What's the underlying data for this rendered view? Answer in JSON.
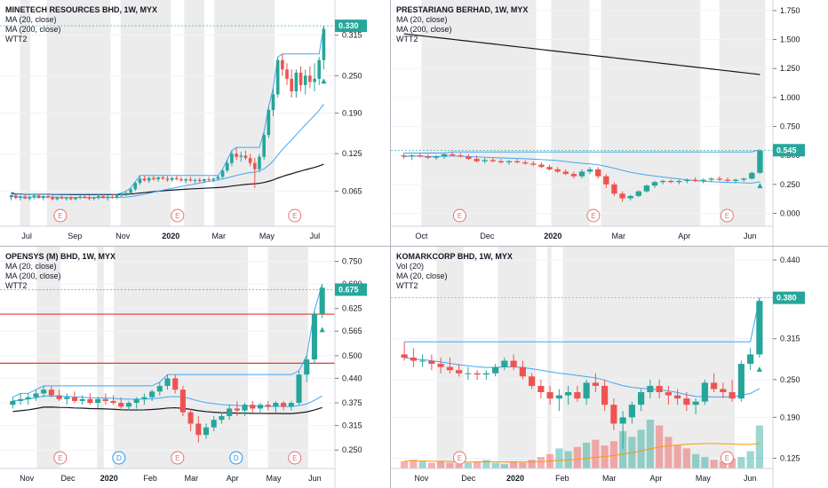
{
  "chart_data": [
    {
      "type": "candlestick",
      "title": "MINETECH RESOURCES BHD, 1W, MYX",
      "indicators": [
        "MA (20, close)",
        "MA (200, close)",
        "WTT2"
      ],
      "x_ticks": [
        "Jul",
        "Sep",
        "Nov",
        "2020",
        "Mar",
        "May",
        "Jul"
      ],
      "y_ticks": [
        "0.315",
        "0.250",
        "0.190",
        "0.125",
        "0.065"
      ],
      "ylim": [
        0.02,
        0.36
      ],
      "last_price": "0.330",
      "accent": "#26a69a",
      "events": [
        "E",
        "E",
        "E"
      ],
      "ohlc": [
        [
          0.055,
          0.06,
          0.05,
          0.058
        ],
        [
          0.058,
          0.06,
          0.052,
          0.054
        ],
        [
          0.054,
          0.058,
          0.05,
          0.056
        ],
        [
          0.056,
          0.06,
          0.052,
          0.053
        ],
        [
          0.053,
          0.057,
          0.05,
          0.055
        ],
        [
          0.055,
          0.06,
          0.052,
          0.058
        ],
        [
          0.058,
          0.06,
          0.053,
          0.054
        ],
        [
          0.054,
          0.058,
          0.05,
          0.057
        ],
        [
          0.057,
          0.06,
          0.053,
          0.055
        ],
        [
          0.055,
          0.058,
          0.05,
          0.052
        ],
        [
          0.052,
          0.056,
          0.05,
          0.055
        ],
        [
          0.055,
          0.058,
          0.052,
          0.053
        ],
        [
          0.053,
          0.056,
          0.05,
          0.054
        ],
        [
          0.054,
          0.057,
          0.05,
          0.052
        ],
        [
          0.052,
          0.056,
          0.05,
          0.055
        ],
        [
          0.055,
          0.058,
          0.052,
          0.056
        ],
        [
          0.056,
          0.059,
          0.053,
          0.054
        ],
        [
          0.054,
          0.058,
          0.05,
          0.053
        ],
        [
          0.053,
          0.056,
          0.05,
          0.055
        ],
        [
          0.055,
          0.06,
          0.052,
          0.057
        ],
        [
          0.057,
          0.06,
          0.053,
          0.054
        ],
        [
          0.054,
          0.058,
          0.05,
          0.056
        ],
        [
          0.056,
          0.06,
          0.053,
          0.055
        ],
        [
          0.055,
          0.06,
          0.052,
          0.058
        ],
        [
          0.058,
          0.062,
          0.055,
          0.06
        ],
        [
          0.06,
          0.065,
          0.057,
          0.062
        ],
        [
          0.062,
          0.07,
          0.06,
          0.068
        ],
        [
          0.068,
          0.08,
          0.065,
          0.078
        ],
        [
          0.078,
          0.09,
          0.075,
          0.085
        ],
        [
          0.085,
          0.09,
          0.08,
          0.082
        ],
        [
          0.082,
          0.088,
          0.078,
          0.086
        ],
        [
          0.086,
          0.09,
          0.082,
          0.084
        ],
        [
          0.084,
          0.088,
          0.08,
          0.087
        ],
        [
          0.087,
          0.09,
          0.083,
          0.085
        ],
        [
          0.085,
          0.089,
          0.08,
          0.083
        ],
        [
          0.083,
          0.088,
          0.08,
          0.086
        ],
        [
          0.086,
          0.09,
          0.082,
          0.084
        ],
        [
          0.084,
          0.088,
          0.08,
          0.082
        ],
        [
          0.082,
          0.086,
          0.078,
          0.084
        ],
        [
          0.084,
          0.088,
          0.08,
          0.082
        ],
        [
          0.082,
          0.085,
          0.078,
          0.083
        ],
        [
          0.083,
          0.086,
          0.079,
          0.081
        ],
        [
          0.081,
          0.085,
          0.078,
          0.084
        ],
        [
          0.084,
          0.088,
          0.08,
          0.083
        ],
        [
          0.083,
          0.087,
          0.079,
          0.085
        ],
        [
          0.085,
          0.09,
          0.082,
          0.088
        ],
        [
          0.088,
          0.1,
          0.085,
          0.098
        ],
        [
          0.098,
          0.115,
          0.095,
          0.11
        ],
        [
          0.11,
          0.13,
          0.105,
          0.125
        ],
        [
          0.125,
          0.135,
          0.115,
          0.12
        ],
        [
          0.12,
          0.128,
          0.112,
          0.122
        ],
        [
          0.122,
          0.13,
          0.115,
          0.118
        ],
        [
          0.118,
          0.125,
          0.105,
          0.11
        ],
        [
          0.11,
          0.118,
          0.07,
          0.1
        ],
        [
          0.1,
          0.125,
          0.095,
          0.12
        ],
        [
          0.12,
          0.16,
          0.115,
          0.155
        ],
        [
          0.155,
          0.2,
          0.15,
          0.195
        ],
        [
          0.195,
          0.23,
          0.185,
          0.22
        ],
        [
          0.22,
          0.28,
          0.215,
          0.275
        ],
        [
          0.275,
          0.285,
          0.25,
          0.26
        ],
        [
          0.26,
          0.27,
          0.235,
          0.245
        ],
        [
          0.245,
          0.26,
          0.215,
          0.225
        ],
        [
          0.225,
          0.26,
          0.215,
          0.255
        ],
        [
          0.255,
          0.265,
          0.225,
          0.235
        ],
        [
          0.235,
          0.26,
          0.22,
          0.25
        ],
        [
          0.25,
          0.265,
          0.23,
          0.24
        ],
        [
          0.24,
          0.27,
          0.225,
          0.245
        ],
        [
          0.245,
          0.28,
          0.235,
          0.275
        ],
        [
          0.275,
          0.33,
          0.26,
          0.325
        ]
      ]
    },
    {
      "type": "candlestick",
      "title": "PRESTARIANG BERHAD, 1W, MYX",
      "indicators": [
        "MA (20, close)",
        "MA (200, close)",
        "WTT2"
      ],
      "x_ticks": [
        "Oct",
        "Dec",
        "2020",
        "Mar",
        "Apr",
        "Jun"
      ],
      "y_ticks": [
        "1.750",
        "1.500",
        "1.250",
        "1.000",
        "0.750",
        "0.500",
        "0.250",
        "0.000"
      ],
      "ylim": [
        -0.05,
        1.78
      ],
      "last_price": "0.545",
      "accent": "#26a69a",
      "events": [
        "E",
        "E",
        "E"
      ],
      "ohlc": [
        [
          0.5,
          0.52,
          0.47,
          0.49
        ],
        [
          0.49,
          0.51,
          0.46,
          0.5
        ],
        [
          0.5,
          0.52,
          0.48,
          0.49
        ],
        [
          0.49,
          0.51,
          0.47,
          0.48
        ],
        [
          0.48,
          0.5,
          0.46,
          0.49
        ],
        [
          0.49,
          0.52,
          0.47,
          0.51
        ],
        [
          0.51,
          0.53,
          0.49,
          0.5
        ],
        [
          0.5,
          0.52,
          0.48,
          0.49
        ],
        [
          0.49,
          0.51,
          0.46,
          0.47
        ],
        [
          0.47,
          0.5,
          0.44,
          0.45
        ],
        [
          0.45,
          0.48,
          0.43,
          0.46
        ],
        [
          0.46,
          0.48,
          0.44,
          0.45
        ],
        [
          0.45,
          0.47,
          0.43,
          0.44
        ],
        [
          0.44,
          0.46,
          0.42,
          0.45
        ],
        [
          0.45,
          0.47,
          0.43,
          0.44
        ],
        [
          0.44,
          0.46,
          0.42,
          0.43
        ],
        [
          0.43,
          0.45,
          0.41,
          0.42
        ],
        [
          0.42,
          0.44,
          0.39,
          0.4
        ],
        [
          0.4,
          0.42,
          0.37,
          0.38
        ],
        [
          0.38,
          0.4,
          0.35,
          0.36
        ],
        [
          0.36,
          0.38,
          0.33,
          0.34
        ],
        [
          0.34,
          0.36,
          0.3,
          0.32
        ],
        [
          0.32,
          0.38,
          0.3,
          0.36
        ],
        [
          0.36,
          0.4,
          0.34,
          0.38
        ],
        [
          0.38,
          0.4,
          0.3,
          0.32
        ],
        [
          0.32,
          0.34,
          0.22,
          0.25
        ],
        [
          0.25,
          0.27,
          0.15,
          0.17
        ],
        [
          0.17,
          0.19,
          0.1,
          0.13
        ],
        [
          0.13,
          0.16,
          0.11,
          0.15
        ],
        [
          0.15,
          0.2,
          0.14,
          0.19
        ],
        [
          0.19,
          0.25,
          0.18,
          0.24
        ],
        [
          0.24,
          0.28,
          0.22,
          0.27
        ],
        [
          0.27,
          0.29,
          0.25,
          0.28
        ],
        [
          0.28,
          0.29,
          0.26,
          0.27
        ],
        [
          0.27,
          0.29,
          0.25,
          0.28
        ],
        [
          0.28,
          0.3,
          0.26,
          0.29
        ],
        [
          0.29,
          0.31,
          0.27,
          0.28
        ],
        [
          0.28,
          0.3,
          0.26,
          0.29
        ],
        [
          0.29,
          0.31,
          0.27,
          0.3
        ],
        [
          0.3,
          0.32,
          0.28,
          0.29
        ],
        [
          0.29,
          0.31,
          0.27,
          0.28
        ],
        [
          0.28,
          0.3,
          0.26,
          0.29
        ],
        [
          0.29,
          0.31,
          0.27,
          0.3
        ],
        [
          0.3,
          0.36,
          0.29,
          0.35
        ],
        [
          0.35,
          0.55,
          0.34,
          0.54
        ]
      ]
    },
    {
      "type": "candlestick",
      "title": "OPENSYS (M) BHD, 1W, MYX",
      "indicators": [
        "MA (20, close)",
        "MA (200, close)",
        "WTT2"
      ],
      "x_ticks": [
        "Nov",
        "Dec",
        "2020",
        "Feb",
        "Mar",
        "Apr",
        "May",
        "Jun"
      ],
      "y_ticks": [
        "0.750",
        "0.690",
        "0.625",
        "0.565",
        "0.500",
        "0.440",
        "0.375",
        "0.315",
        "0.250"
      ],
      "ylim": [
        0.22,
        0.77
      ],
      "last_price": "0.675",
      "accent": "#26a69a",
      "events": [
        "E",
        "D",
        "E",
        "D",
        "E"
      ],
      "ohlc": [
        [
          0.37,
          0.39,
          0.36,
          0.38
        ],
        [
          0.38,
          0.4,
          0.37,
          0.385
        ],
        [
          0.385,
          0.4,
          0.37,
          0.39
        ],
        [
          0.39,
          0.41,
          0.38,
          0.4
        ],
        [
          0.4,
          0.42,
          0.39,
          0.41
        ],
        [
          0.41,
          0.42,
          0.39,
          0.395
        ],
        [
          0.395,
          0.41,
          0.38,
          0.385
        ],
        [
          0.385,
          0.4,
          0.37,
          0.39
        ],
        [
          0.39,
          0.405,
          0.375,
          0.38
        ],
        [
          0.38,
          0.395,
          0.37,
          0.385
        ],
        [
          0.385,
          0.4,
          0.37,
          0.375
        ],
        [
          0.375,
          0.39,
          0.36,
          0.385
        ],
        [
          0.385,
          0.4,
          0.37,
          0.38
        ],
        [
          0.38,
          0.395,
          0.37,
          0.375
        ],
        [
          0.375,
          0.39,
          0.36,
          0.365
        ],
        [
          0.365,
          0.38,
          0.355,
          0.375
        ],
        [
          0.375,
          0.39,
          0.36,
          0.385
        ],
        [
          0.385,
          0.4,
          0.37,
          0.39
        ],
        [
          0.39,
          0.41,
          0.38,
          0.405
        ],
        [
          0.405,
          0.43,
          0.395,
          0.42
        ],
        [
          0.42,
          0.45,
          0.41,
          0.44
        ],
        [
          0.44,
          0.45,
          0.4,
          0.41
        ],
        [
          0.41,
          0.42,
          0.34,
          0.35
        ],
        [
          0.35,
          0.36,
          0.3,
          0.32
        ],
        [
          0.32,
          0.34,
          0.27,
          0.29
        ],
        [
          0.29,
          0.32,
          0.28,
          0.31
        ],
        [
          0.31,
          0.34,
          0.3,
          0.33
        ],
        [
          0.33,
          0.35,
          0.32,
          0.34
        ],
        [
          0.34,
          0.37,
          0.33,
          0.36
        ],
        [
          0.36,
          0.38,
          0.34,
          0.355
        ],
        [
          0.355,
          0.375,
          0.34,
          0.37
        ],
        [
          0.37,
          0.38,
          0.35,
          0.36
        ],
        [
          0.36,
          0.375,
          0.35,
          0.37
        ],
        [
          0.37,
          0.38,
          0.355,
          0.365
        ],
        [
          0.365,
          0.38,
          0.35,
          0.375
        ],
        [
          0.375,
          0.38,
          0.355,
          0.365
        ],
        [
          0.365,
          0.38,
          0.355,
          0.375
        ],
        [
          0.375,
          0.46,
          0.37,
          0.45
        ],
        [
          0.45,
          0.5,
          0.43,
          0.49
        ],
        [
          0.49,
          0.62,
          0.48,
          0.61
        ],
        [
          0.61,
          0.69,
          0.6,
          0.68
        ]
      ]
    },
    {
      "type": "candlestick",
      "title": "KOMARKCORP BHD, 1W, MYX",
      "indicators": [
        "Vol (20)",
        "MA (20, close)",
        "WTT2"
      ],
      "x_ticks": [
        "Nov",
        "Dec",
        "2020",
        "Feb",
        "Mar",
        "Apr",
        "May",
        "Jun"
      ],
      "y_ticks": [
        "0.440",
        "0.380",
        "0.315",
        "0.250",
        "0.190",
        "0.125"
      ],
      "ylim": [
        0.12,
        0.45
      ],
      "last_price": "0.380",
      "accent": "#26a69a",
      "events": [
        "E",
        "E"
      ],
      "volumes": [
        0.5,
        0.6,
        0.5,
        0.4,
        0.5,
        0.4,
        0.3,
        0.4,
        0.5,
        0.6,
        0.4,
        0.3,
        0.5,
        0.4,
        0.6,
        0.8,
        1.0,
        1.4,
        1.2,
        1.5,
        1.8,
        2.0,
        1.6,
        1.9,
        2.6,
        2.2,
        2.7,
        3.4,
        3.0,
        2.2,
        1.6,
        1.4,
        1.0,
        0.8,
        0.6,
        0.5,
        0.7,
        0.8,
        1.2,
        3.0
      ],
      "volume_max": 3.4,
      "ohlc": [
        [
          0.29,
          0.31,
          0.28,
          0.285
        ],
        [
          0.285,
          0.3,
          0.27,
          0.28
        ],
        [
          0.28,
          0.29,
          0.27,
          0.28
        ],
        [
          0.28,
          0.29,
          0.265,
          0.275
        ],
        [
          0.275,
          0.285,
          0.26,
          0.27
        ],
        [
          0.27,
          0.285,
          0.26,
          0.265
        ],
        [
          0.265,
          0.275,
          0.255,
          0.26
        ],
        [
          0.26,
          0.27,
          0.25,
          0.26
        ],
        [
          0.26,
          0.265,
          0.25,
          0.258
        ],
        [
          0.258,
          0.265,
          0.25,
          0.26
        ],
        [
          0.26,
          0.275,
          0.255,
          0.27
        ],
        [
          0.27,
          0.285,
          0.265,
          0.28
        ],
        [
          0.28,
          0.29,
          0.265,
          0.27
        ],
        [
          0.27,
          0.28,
          0.25,
          0.255
        ],
        [
          0.255,
          0.26,
          0.235,
          0.24
        ],
        [
          0.24,
          0.25,
          0.22,
          0.23
        ],
        [
          0.23,
          0.24,
          0.21,
          0.22
        ],
        [
          0.22,
          0.235,
          0.2,
          0.225
        ],
        [
          0.225,
          0.24,
          0.21,
          0.23
        ],
        [
          0.23,
          0.24,
          0.215,
          0.22
        ],
        [
          0.22,
          0.25,
          0.21,
          0.245
        ],
        [
          0.245,
          0.26,
          0.23,
          0.24
        ],
        [
          0.24,
          0.25,
          0.2,
          0.21
        ],
        [
          0.21,
          0.22,
          0.17,
          0.18
        ],
        [
          0.18,
          0.2,
          0.14,
          0.19
        ],
        [
          0.19,
          0.215,
          0.18,
          0.21
        ],
        [
          0.21,
          0.235,
          0.2,
          0.23
        ],
        [
          0.23,
          0.25,
          0.22,
          0.24
        ],
        [
          0.24,
          0.25,
          0.22,
          0.23
        ],
        [
          0.23,
          0.24,
          0.21,
          0.225
        ],
        [
          0.225,
          0.235,
          0.21,
          0.22
        ],
        [
          0.22,
          0.23,
          0.2,
          0.21
        ],
        [
          0.21,
          0.22,
          0.195,
          0.215
        ],
        [
          0.215,
          0.25,
          0.21,
          0.245
        ],
        [
          0.245,
          0.26,
          0.23,
          0.235
        ],
        [
          0.235,
          0.245,
          0.22,
          0.23
        ],
        [
          0.23,
          0.25,
          0.215,
          0.22
        ],
        [
          0.22,
          0.28,
          0.215,
          0.275
        ],
        [
          0.275,
          0.3,
          0.265,
          0.29
        ],
        [
          0.29,
          0.38,
          0.285,
          0.375
        ]
      ]
    }
  ]
}
